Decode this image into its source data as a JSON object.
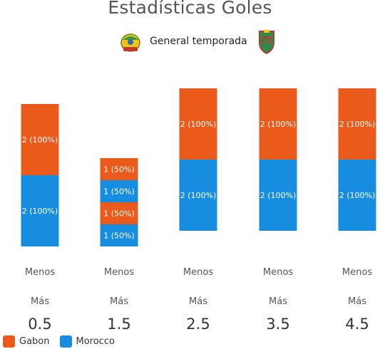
{
  "chart_data": {
    "type": "bar",
    "stacked": true,
    "normalized_per_series": true,
    "title": "Estadísticas Goles",
    "subtitle": "General temporada",
    "categories": [
      {
        "top": "Menos",
        "middle": "Más",
        "bottom": "0.5"
      },
      {
        "top": "Menos",
        "middle": "Más",
        "bottom": "1.5"
      },
      {
        "top": "Menos",
        "middle": "Más",
        "bottom": "2.5"
      },
      {
        "top": "Menos",
        "middle": "Más",
        "bottom": "3.5"
      },
      {
        "top": "Menos",
        "middle": "Más",
        "bottom": "4.5"
      }
    ],
    "series": [
      {
        "name": "Gabon",
        "color": "#ea5b1b",
        "segments": [
          [
            {
              "value": 2,
              "label": "2 (100%)"
            }
          ],
          [
            {
              "value": 1,
              "label": "1 (50%)"
            },
            {
              "value": 1,
              "label": "1 (50%)"
            }
          ],
          [
            {
              "value": 2,
              "label": "2 (100%)"
            }
          ],
          [
            {
              "value": 2,
              "label": "2 (100%)"
            }
          ],
          [
            {
              "value": 2,
              "label": "2 (100%)"
            }
          ]
        ]
      },
      {
        "name": "Morocco",
        "color": "#168ddf",
        "segments": [
          [
            {
              "value": 2,
              "label": "2 (100%)"
            }
          ],
          [
            {
              "value": 1,
              "label": "1 (50%)"
            },
            {
              "value": 1,
              "label": "1 (50%)"
            }
          ],
          [
            {
              "value": 2,
              "label": "2 (100%)"
            }
          ],
          [
            {
              "value": 2,
              "label": "2 (100%)"
            }
          ],
          [
            {
              "value": 2,
              "label": "2 (100%)"
            }
          ]
        ]
      }
    ],
    "legend": "bottom-left",
    "grid": false
  }
}
